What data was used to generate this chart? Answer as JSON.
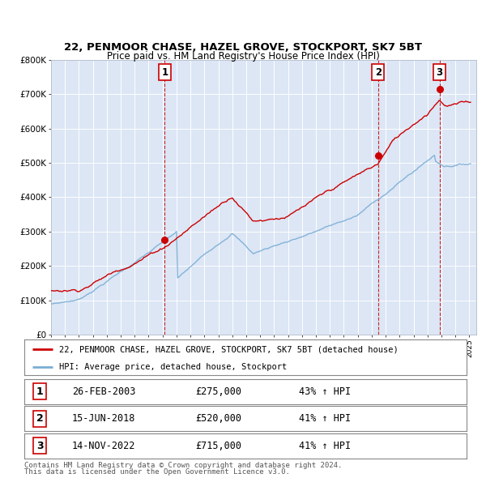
{
  "title1": "22, PENMOOR CHASE, HAZEL GROVE, STOCKPORT, SK7 5BT",
  "title2": "Price paid vs. HM Land Registry's House Price Index (HPI)",
  "red_label": "22, PENMOOR CHASE, HAZEL GROVE, STOCKPORT, SK7 5BT (detached house)",
  "blue_label": "HPI: Average price, detached house, Stockport",
  "footer1": "Contains HM Land Registry data © Crown copyright and database right 2024.",
  "footer2": "This data is licensed under the Open Government Licence v3.0.",
  "transactions": [
    {
      "num": 1,
      "date": "26-FEB-2003",
      "price": "£275,000",
      "hpi": "43% ↑ HPI",
      "year": 2003.15
    },
    {
      "num": 2,
      "date": "15-JUN-2018",
      "price": "£520,000",
      "hpi": "41% ↑ HPI",
      "year": 2018.46
    },
    {
      "num": 3,
      "date": "14-NOV-2022",
      "price": "£715,000",
      "hpi": "41% ↑ HPI",
      "year": 2022.87
    }
  ],
  "trans_prices": [
    275000,
    520000,
    715000
  ],
  "ylim": [
    0,
    800000
  ],
  "xlim_start": 1995.0,
  "xlim_end": 2025.5,
  "red_color": "#cc0000",
  "blue_color": "#7aadd4",
  "grid_color": "#ffffff",
  "plot_bg": "#dce6f5"
}
